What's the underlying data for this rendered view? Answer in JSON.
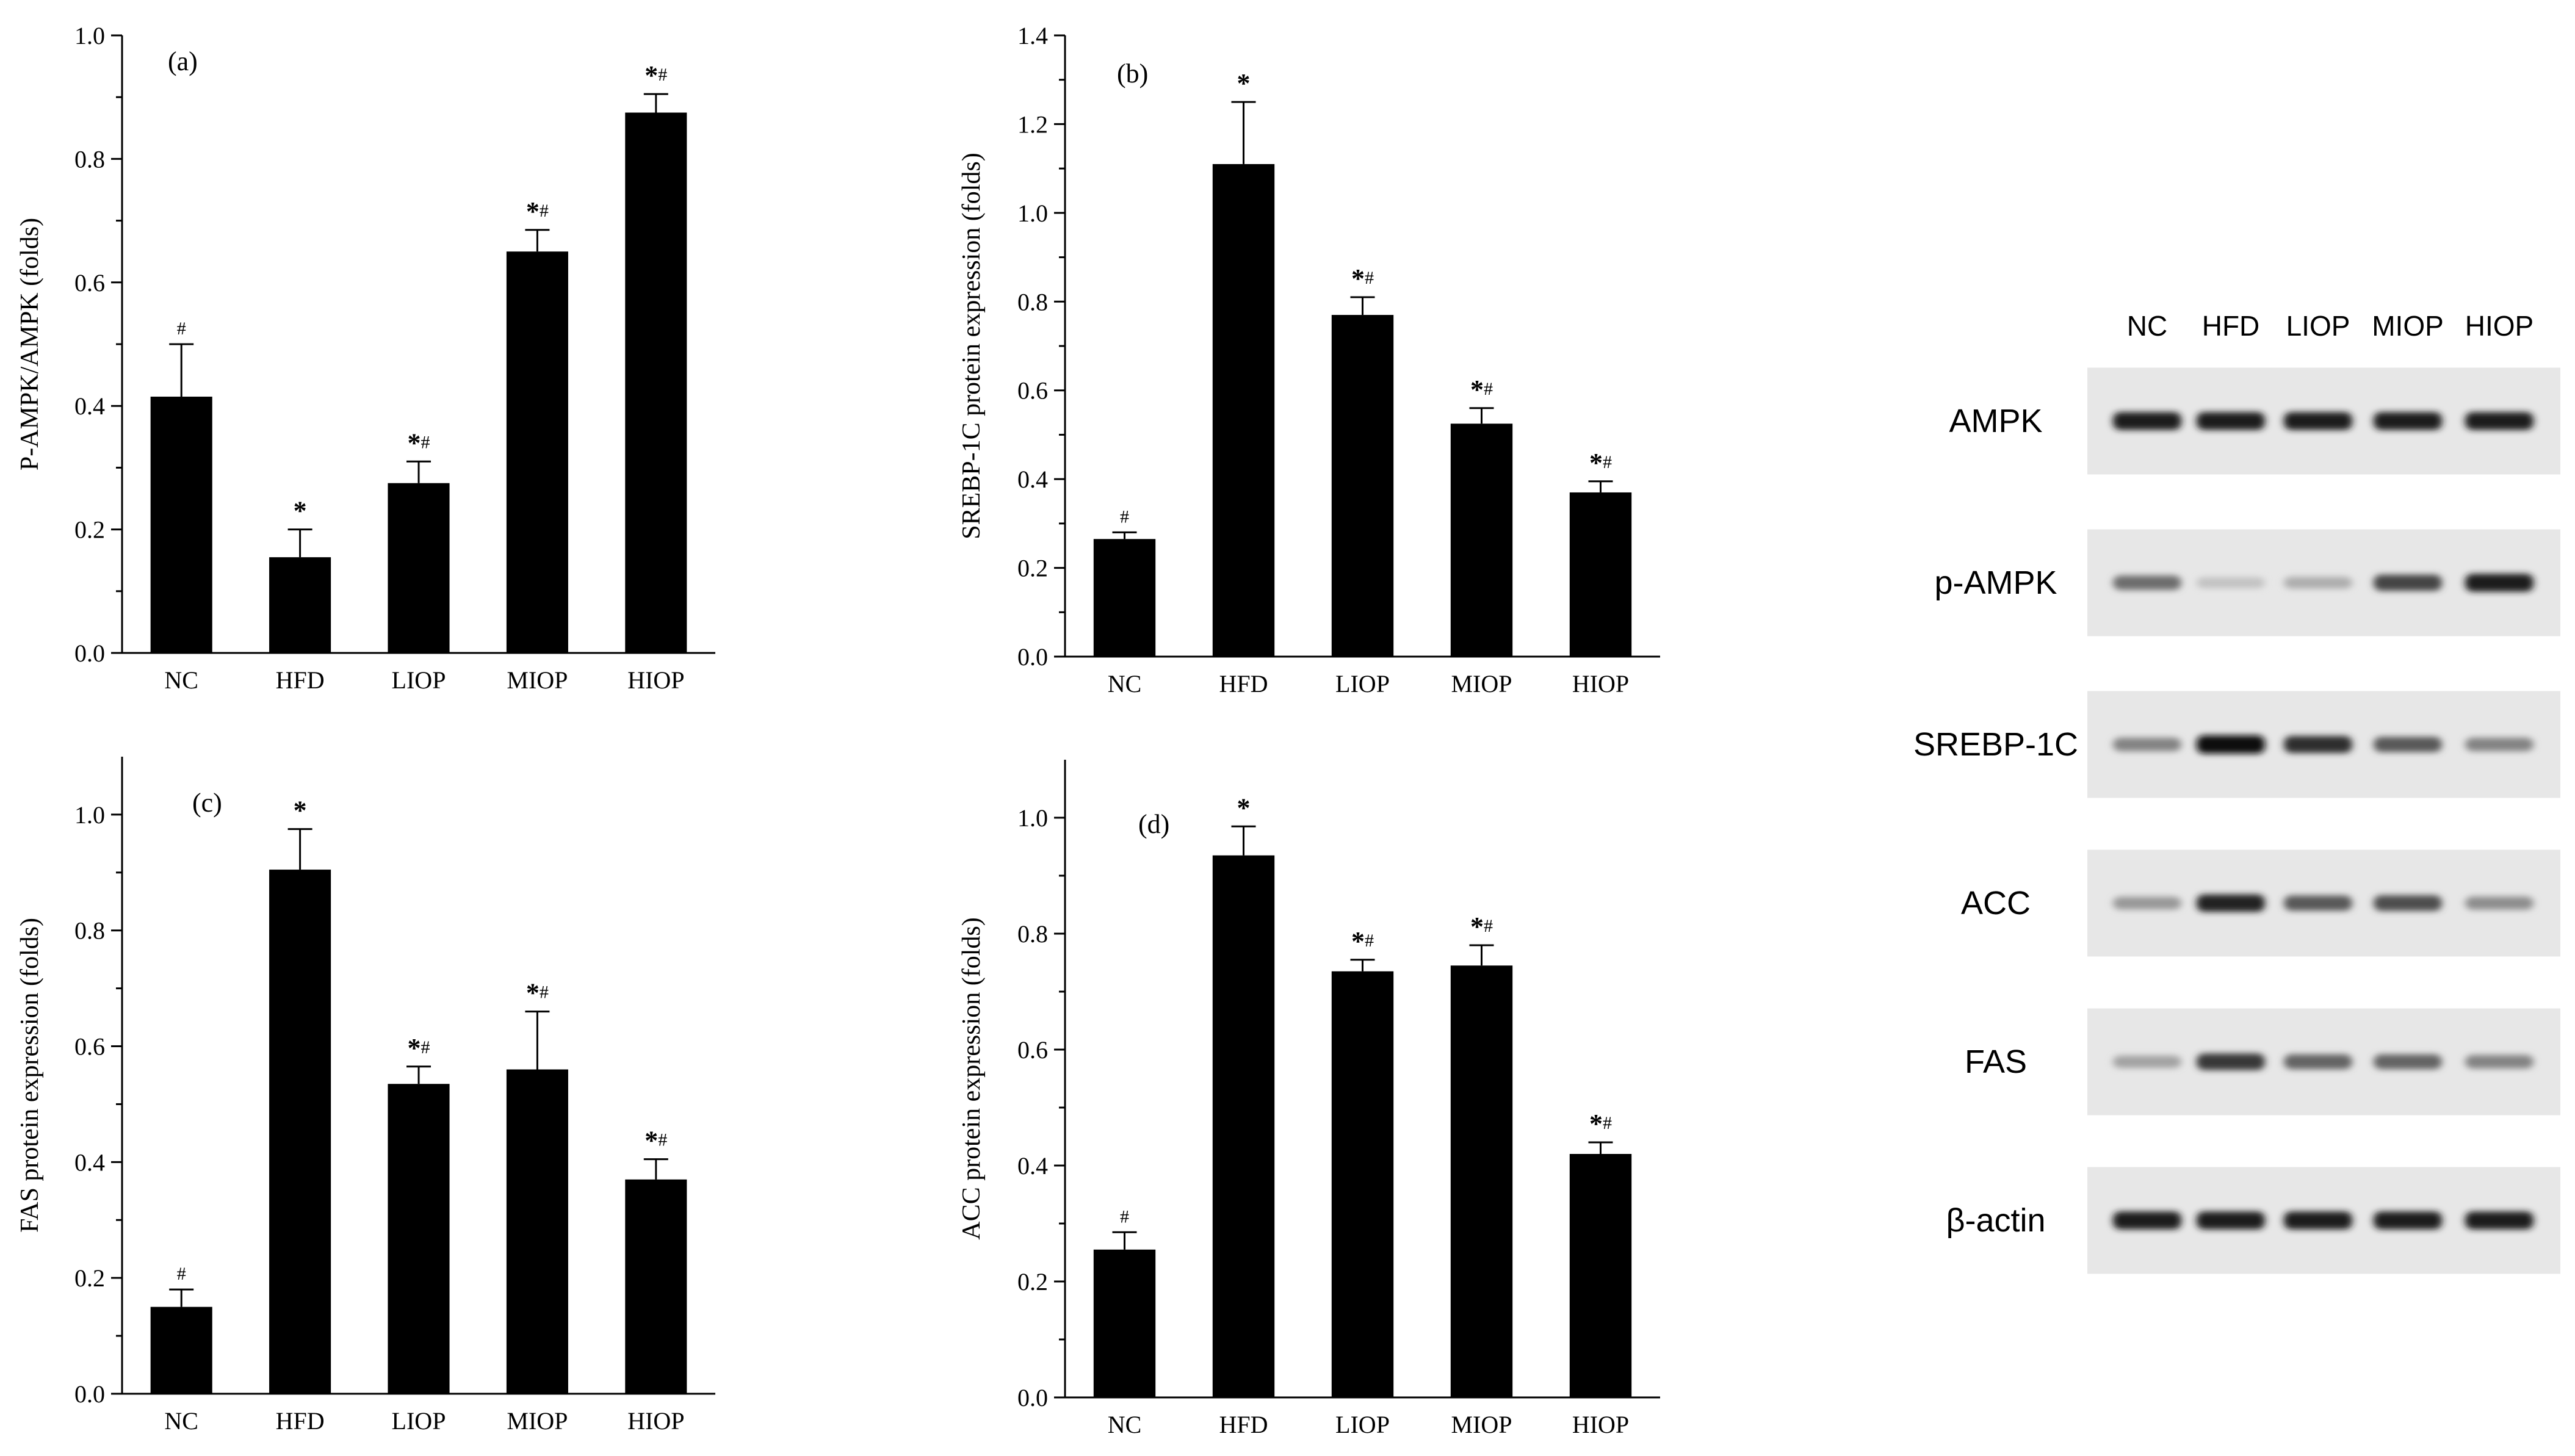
{
  "chart_data": [
    {
      "type": "bar",
      "panel_label": "(a)",
      "categories": [
        "NC",
        "HFD",
        "LIOP",
        "MIOP",
        "HIOP"
      ],
      "values": [
        0.415,
        0.155,
        0.275,
        0.65,
        0.875
      ],
      "errors": [
        0.085,
        0.045,
        0.035,
        0.035,
        0.03
      ],
      "significance": [
        "#",
        "*",
        "*#",
        "*#",
        "*#"
      ],
      "ylabel": "P-AMPK/AMPK (folds)",
      "xlabel": "",
      "ylim": [
        0,
        1.0
      ],
      "yticks": [
        "0.0",
        "0.2",
        "0.4",
        "0.6",
        "0.8",
        "1.0"
      ]
    },
    {
      "type": "bar",
      "panel_label": "(b)",
      "categories": [
        "NC",
        "HFD",
        "LIOP",
        "MIOP",
        "HIOP"
      ],
      "values": [
        0.265,
        1.11,
        0.77,
        0.525,
        0.37
      ],
      "errors": [
        0.015,
        0.14,
        0.04,
        0.035,
        0.025
      ],
      "significance": [
        "#",
        "*",
        "*#",
        "*#",
        "*#"
      ],
      "ylabel": "SREBP-1C protein expression (folds)",
      "xlabel": "",
      "ylim": [
        0,
        1.4
      ],
      "yticks": [
        "0.0",
        "0.2",
        "0.4",
        "0.6",
        "0.8",
        "1.0",
        "1.2",
        "1.4"
      ]
    },
    {
      "type": "bar",
      "panel_label": "(c)",
      "categories": [
        "NC",
        "HFD",
        "LIOP",
        "MIOP",
        "HIOP"
      ],
      "values": [
        0.15,
        0.905,
        0.535,
        0.56,
        0.37
      ],
      "errors": [
        0.03,
        0.07,
        0.03,
        0.1,
        0.035
      ],
      "significance": [
        "#",
        "*",
        "*#",
        "*#",
        "*#"
      ],
      "ylabel": "FAS protein expression (folds)",
      "xlabel": "",
      "ylim": [
        0,
        1.1
      ],
      "yticks": [
        "0.0",
        "0.2",
        "0.4",
        "0.6",
        "0.8",
        "1.0"
      ]
    },
    {
      "type": "bar",
      "panel_label": "(d)",
      "categories": [
        "NC",
        "HFD",
        "LIOP",
        "MIOP",
        "HIOP"
      ],
      "values": [
        0.255,
        0.935,
        0.735,
        0.745,
        0.42
      ],
      "errors": [
        0.03,
        0.05,
        0.02,
        0.035,
        0.02
      ],
      "significance": [
        "#",
        "*",
        "*#",
        "*#",
        "*#"
      ],
      "ylabel": "ACC protein expression (folds)",
      "xlabel": "",
      "ylim": [
        0,
        1.1
      ],
      "yticks": [
        "0.0",
        "0.2",
        "0.4",
        "0.6",
        "0.8",
        "1.0"
      ]
    }
  ],
  "western_blot": {
    "lanes": [
      "NC",
      "HFD",
      "LIOP",
      "MIOP",
      "HIOP"
    ],
    "rows": [
      {
        "label": "AMPK",
        "intensity": [
          0.95,
          0.95,
          0.95,
          0.95,
          0.95
        ]
      },
      {
        "label": "p-AMPK",
        "intensity": [
          0.55,
          0.15,
          0.25,
          0.75,
          0.95
        ]
      },
      {
        "label": "SREBP-1C",
        "intensity": [
          0.45,
          1.0,
          0.85,
          0.65,
          0.45
        ]
      },
      {
        "label": "ACC",
        "intensity": [
          0.35,
          0.9,
          0.65,
          0.7,
          0.4
        ]
      },
      {
        "label": "FAS",
        "intensity": [
          0.3,
          0.8,
          0.6,
          0.6,
          0.45
        ]
      },
      {
        "label": "β-actin",
        "intensity": [
          0.95,
          0.95,
          0.95,
          0.95,
          0.95
        ]
      }
    ]
  }
}
